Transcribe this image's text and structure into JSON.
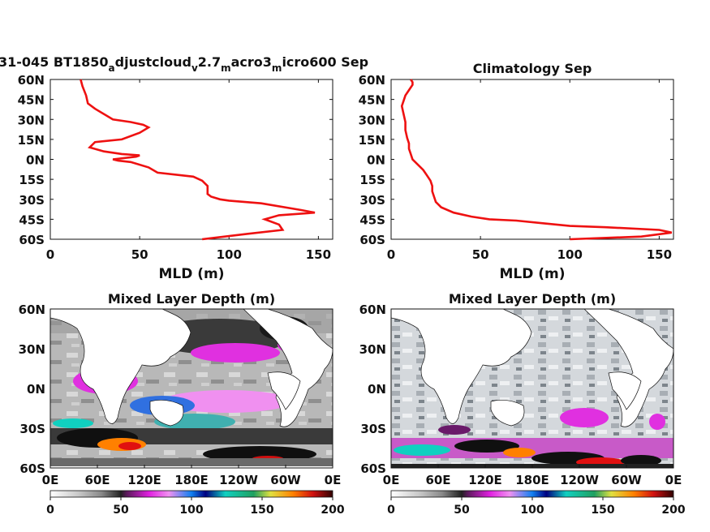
{
  "colors": {
    "profile_line": "#ee1111",
    "colormap": [
      "#ffffff",
      "#c8c8c8",
      "#8a8a8a",
      "#222222",
      "#6a1a6a",
      "#e020e0",
      "#f090f0",
      "#1080f0",
      "#000080",
      "#10d0c0",
      "#20a060",
      "#e0e040",
      "#ff8000",
      "#d01010",
      "#400000"
    ]
  },
  "chart_data": [
    {
      "id": "top-left",
      "type": "line",
      "title": "31-045 BT1850",
      "title_sub1": "a",
      "title_mid1": "djustcloud",
      "title_sub2": "v",
      "title_mid2": "2.7",
      "title_sub3": "m",
      "title_mid3": "acro3",
      "title_sub4": "m",
      "title_end": "icro600 Sep",
      "xlabel": "MLD (m)",
      "ylabel": "",
      "xlim": [
        0,
        158
      ],
      "ylim": [
        -60,
        60
      ],
      "xticks": [
        "0",
        "50",
        "100",
        "150"
      ],
      "xtick_values": [
        0,
        50,
        100,
        150
      ],
      "yticks": [
        "60N",
        "45N",
        "30N",
        "15N",
        "0N",
        "15S",
        "30S",
        "45S",
        "60S"
      ],
      "ytick_values": [
        60,
        45,
        30,
        15,
        0,
        -15,
        -30,
        -45,
        -60
      ],
      "series": [
        {
          "x": [
            85,
            110,
            130,
            128,
            120,
            128,
            148,
            140,
            118,
            100,
            95,
            90,
            88,
            88,
            85,
            80,
            60,
            55,
            45,
            38,
            35,
            48,
            50,
            40,
            30,
            22,
            25,
            40,
            50,
            55,
            52,
            45,
            35,
            25,
            21,
            20,
            18,
            17
          ],
          "y": [
            -60,
            -56,
            -53,
            -49,
            -45,
            -42,
            -40,
            -38,
            -33,
            -31,
            -30,
            -28,
            -26,
            -20,
            -16,
            -13,
            -10,
            -6,
            -2,
            -1,
            0,
            2,
            3,
            4,
            6,
            9,
            13,
            15,
            20,
            24,
            26,
            28,
            30,
            38,
            42,
            48,
            55,
            60
          ]
        }
      ]
    },
    {
      "id": "top-right",
      "type": "line",
      "title": "Climatology Sep",
      "xlabel": "MLD (m)",
      "ylabel": "",
      "xlim": [
        0,
        158
      ],
      "ylim": [
        -60,
        60
      ],
      "xticks": [
        "0",
        "50",
        "100",
        "150"
      ],
      "xtick_values": [
        0,
        50,
        100,
        150
      ],
      "yticks": [
        "60N",
        "45N",
        "30N",
        "15N",
        "0N",
        "15S",
        "30S",
        "45S",
        "60S"
      ],
      "ytick_values": [
        60,
        45,
        30,
        15,
        0,
        -15,
        -30,
        -45,
        -60
      ],
      "series": [
        {
          "x": [
            100,
            140,
            157,
            150,
            120,
            100,
            85,
            70,
            55,
            45,
            35,
            28,
            25,
            24,
            23,
            23,
            22,
            20,
            18,
            15,
            12,
            11,
            10,
            10,
            9,
            8,
            8,
            7,
            6,
            7,
            8,
            10,
            12,
            12,
            11
          ],
          "y": [
            -60,
            -58,
            -55,
            -53,
            -51,
            -50,
            -48,
            -46,
            -45,
            -43,
            -40,
            -36,
            -32,
            -28,
            -24,
            -20,
            -16,
            -12,
            -8,
            -4,
            0,
            4,
            8,
            12,
            16,
            22,
            28,
            34,
            40,
            44,
            48,
            52,
            56,
            58,
            60
          ]
        }
      ]
    },
    {
      "id": "bottom-left",
      "type": "heatmap",
      "title": "Mixed Layer Depth (m)",
      "xticks": [
        "0E",
        "60E",
        "120E",
        "180E",
        "120W",
        "60W",
        "0E"
      ],
      "yticks": [
        "60N",
        "30N",
        "0N",
        "30S",
        "60S"
      ],
      "colorbar_ticks": [
        "0",
        "50",
        "100",
        "150",
        "200"
      ],
      "color_range": [
        0,
        200
      ]
    },
    {
      "id": "bottom-right",
      "type": "heatmap",
      "title": "Mixed Layer Depth (m)",
      "xticks": [
        "0E",
        "60E",
        "120E",
        "180E",
        "120W",
        "60W",
        "0E"
      ],
      "yticks": [
        "60N",
        "30N",
        "0N",
        "30S",
        "60S"
      ],
      "colorbar_ticks": [
        "0",
        "50",
        "100",
        "150",
        "200"
      ],
      "color_range": [
        0,
        200
      ]
    }
  ]
}
